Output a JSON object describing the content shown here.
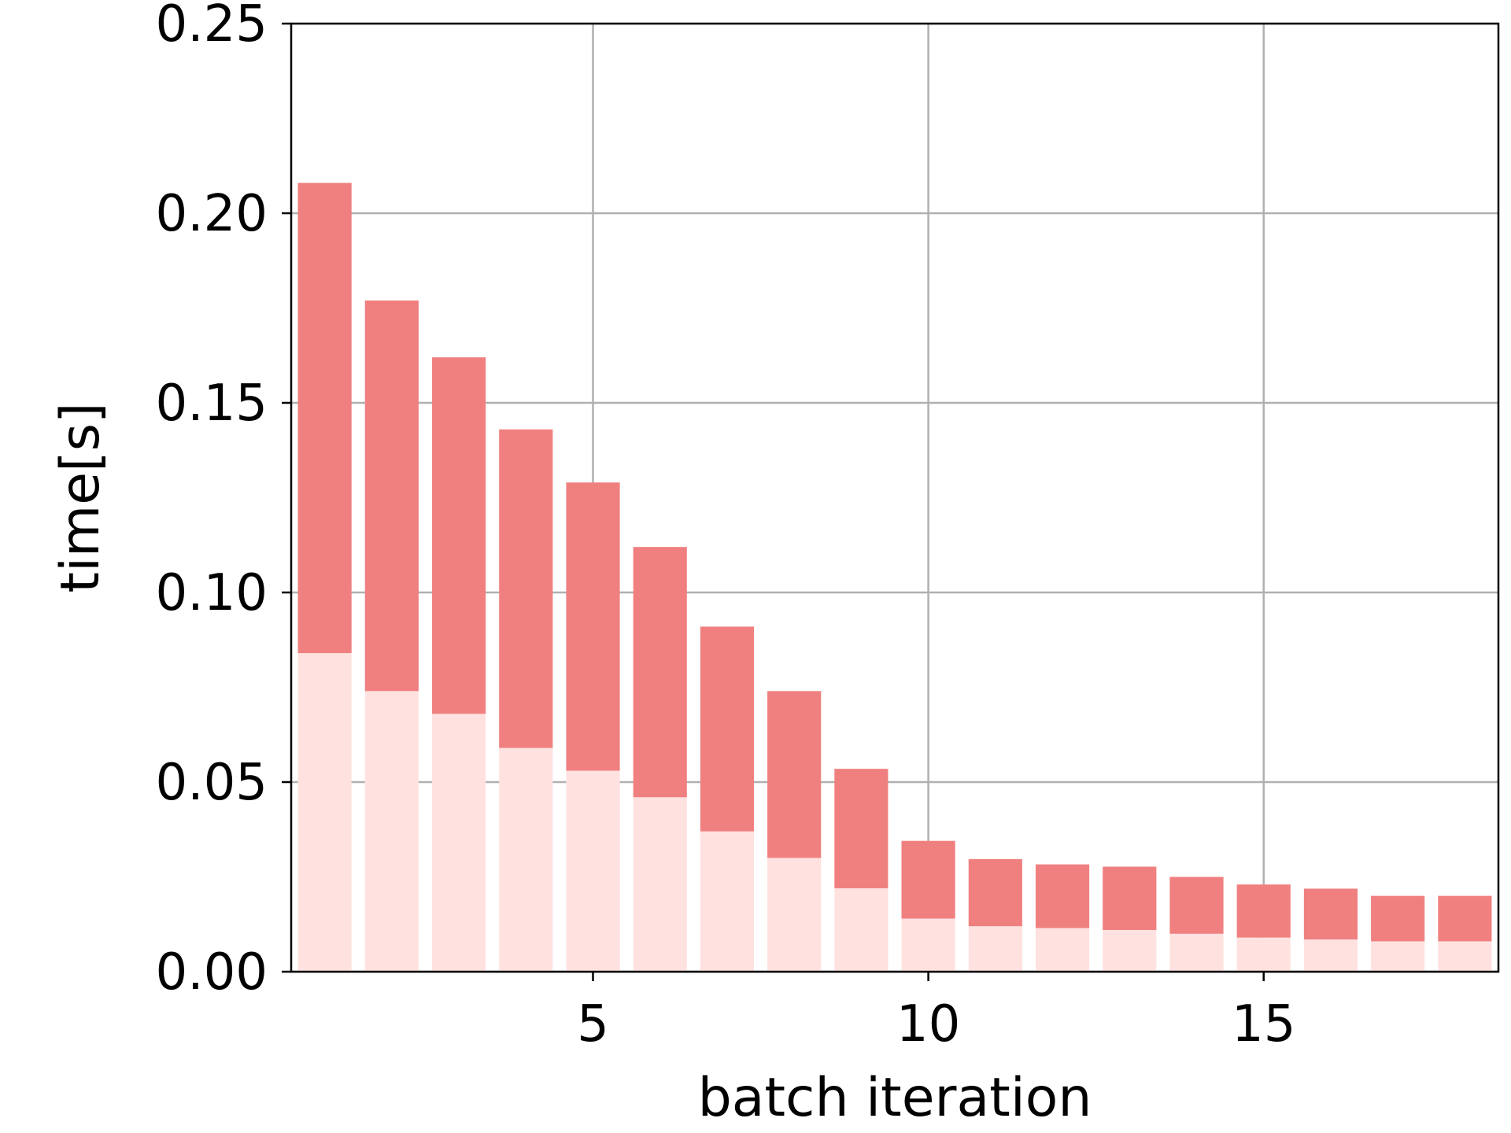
{
  "chart_data": {
    "type": "bar",
    "stacked": true,
    "x": [
      1,
      2,
      3,
      4,
      5,
      6,
      7,
      8,
      9,
      10,
      11,
      12,
      13,
      14,
      15,
      16,
      17,
      18
    ],
    "series": [
      {
        "color": "#ffe2e0",
        "values": [
          0.084,
          0.074,
          0.068,
          0.059,
          0.053,
          0.046,
          0.037,
          0.03,
          0.022,
          0.014,
          0.012,
          0.0115,
          0.011,
          0.01,
          0.009,
          0.0085,
          0.008,
          0.008
        ]
      },
      {
        "color": "#f08080",
        "values": [
          0.124,
          0.103,
          0.094,
          0.084,
          0.076,
          0.066,
          0.054,
          0.044,
          0.0315,
          0.0205,
          0.0177,
          0.0168,
          0.0167,
          0.015,
          0.014,
          0.0134,
          0.012,
          0.012
        ]
      }
    ],
    "xlabel": "batch iteration",
    "ylabel": "time[s]",
    "xlim": [
      0.5,
      18.5
    ],
    "ylim": [
      0,
      0.25
    ],
    "xticks": [
      5,
      10,
      15
    ],
    "xtick_labels": [
      "5",
      "10",
      "15"
    ],
    "yticks": [
      0,
      0.05,
      0.1,
      0.15,
      0.2,
      0.25
    ],
    "ytick_labels": [
      "0.00",
      "0.05",
      "0.10",
      "0.15",
      "0.20",
      "0.25"
    ],
    "grid": true,
    "legend": "none"
  }
}
